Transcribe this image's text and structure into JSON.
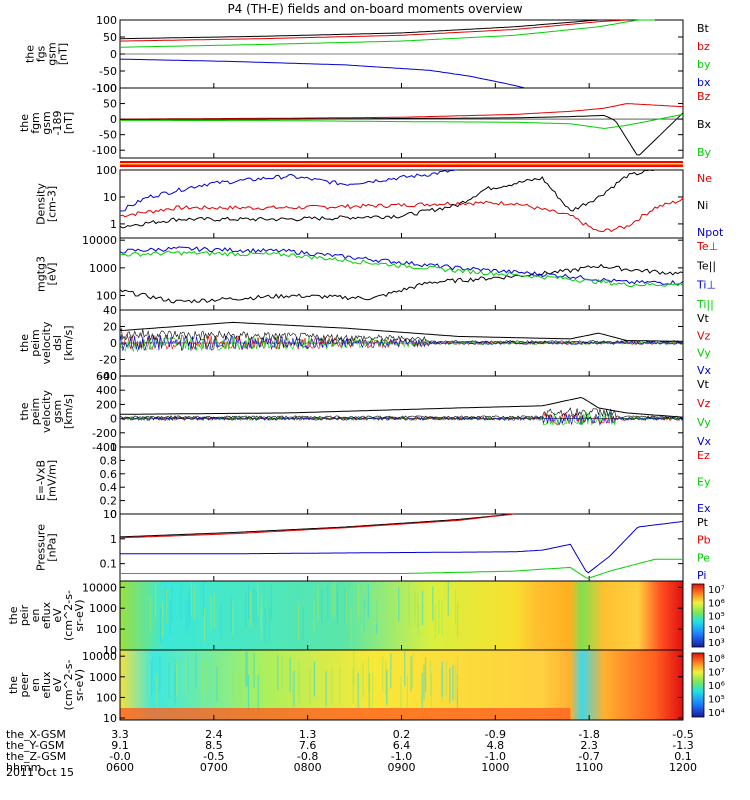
{
  "title": "P4 (TH-E) fields and on-board moments overview",
  "date": "2011 Oct 15",
  "colors": {
    "black": "#000000",
    "red": "#e00000",
    "green": "#00d000",
    "blue": "#0000d0"
  },
  "chart_data": [
    {
      "type": "line",
      "id": "fgs",
      "ylabel": [
        "the",
        "fgs",
        "gsm",
        "[nT]"
      ],
      "ylim": [
        -100,
        100
      ],
      "ticks": [
        100,
        50,
        0,
        -50,
        -100
      ],
      "legend": [
        {
          "name": "Bt",
          "color": "black"
        },
        {
          "name": "bz",
          "color": "red"
        },
        {
          "name": "by",
          "color": "green"
        },
        {
          "name": "bx",
          "color": "blue"
        }
      ],
      "series": [
        {
          "name": "Bt",
          "color": "black",
          "x": [
            0,
            0.25,
            0.5,
            0.7,
            0.85,
            0.9,
            0.92
          ],
          "y": [
            45,
            52,
            62,
            80,
            100,
            100,
            100
          ]
        },
        {
          "name": "bz",
          "color": "red",
          "x": [
            0,
            0.25,
            0.5,
            0.7,
            0.85,
            0.9
          ],
          "y": [
            38,
            45,
            55,
            72,
            95,
            100
          ]
        },
        {
          "name": "by",
          "color": "green",
          "x": [
            0,
            0.25,
            0.5,
            0.7,
            0.85,
            0.92,
            0.95
          ],
          "y": [
            20,
            28,
            38,
            55,
            80,
            100,
            100
          ]
        },
        {
          "name": "bx",
          "color": "blue",
          "x": [
            0,
            0.2,
            0.4,
            0.55,
            0.62,
            0.68,
            0.72
          ],
          "y": [
            -15,
            -22,
            -32,
            -48,
            -65,
            -85,
            -100
          ]
        }
      ]
    },
    {
      "type": "line",
      "id": "fgm",
      "ylabel": [
        "the",
        "fgm",
        "gsm",
        "-189",
        "[nT]"
      ],
      "ylim": [
        -125,
        100
      ],
      "ticks": [
        100,
        50,
        0,
        -50,
        -100
      ],
      "legend": [
        {
          "name": "Bz",
          "color": "red"
        },
        {
          "name": "Bx",
          "color": "black"
        },
        {
          "name": "By",
          "color": "green"
        }
      ],
      "series": [
        {
          "name": "Bz",
          "color": "red",
          "x": [
            0,
            0.3,
            0.5,
            0.7,
            0.8,
            0.86,
            0.9,
            0.95,
            1
          ],
          "y": [
            0,
            3,
            6,
            15,
            25,
            35,
            50,
            45,
            40
          ]
        },
        {
          "name": "Bx",
          "color": "black",
          "x": [
            0,
            0.3,
            0.5,
            0.7,
            0.8,
            0.86,
            0.88,
            0.92,
            1
          ],
          "y": [
            -1,
            0,
            2,
            4,
            8,
            12,
            -5,
            -120,
            20
          ]
        },
        {
          "name": "By",
          "color": "green",
          "x": [
            0,
            0.3,
            0.5,
            0.7,
            0.8,
            0.86,
            0.9,
            1
          ],
          "y": [
            -4,
            -5,
            -8,
            -10,
            -15,
            -30,
            -20,
            15
          ]
        }
      ]
    },
    {
      "type": "line",
      "id": "density",
      "ylabel": [
        "Density",
        "[cm-3]"
      ],
      "ylim": [
        0.3,
        100
      ],
      "scale": "log",
      "ticks": [
        100,
        10,
        1
      ],
      "legend": [
        {
          "name": "Ne",
          "color": "red"
        },
        {
          "name": "Ni",
          "color": "black"
        },
        {
          "name": "Npot",
          "color": "blue"
        }
      ],
      "series": [
        {
          "name": "Ne",
          "color": "red",
          "x": [
            0,
            0.1,
            0.3,
            0.5,
            0.6,
            0.7,
            0.8,
            0.85,
            0.9,
            0.95,
            1
          ],
          "y": [
            2,
            4,
            4,
            5,
            6,
            6,
            2,
            0.5,
            0.8,
            4,
            8
          ]
        },
        {
          "name": "Ni",
          "color": "black",
          "x": [
            0,
            0.1,
            0.3,
            0.5,
            0.6,
            0.65,
            0.75,
            0.8,
            0.85,
            0.9,
            1
          ],
          "y": [
            0.8,
            1.5,
            1.5,
            2,
            5,
            20,
            50,
            3,
            10,
            60,
            180
          ]
        },
        {
          "name": "Npot",
          "color": "blue",
          "x": [
            0,
            0.05,
            0.15,
            0.3,
            0.4,
            0.45,
            0.55,
            0.6
          ],
          "y": [
            3,
            10,
            30,
            60,
            30,
            40,
            70,
            100
          ]
        }
      ]
    },
    {
      "type": "line",
      "id": "mgtg3",
      "ylabel": [
        "mgtg3",
        "[eV]"
      ],
      "ylim": [
        30,
        12000
      ],
      "scale": "log",
      "ticks": [
        10000,
        1000,
        100
      ],
      "legend": [
        {
          "name": "Te⊥",
          "color": "red"
        },
        {
          "name": "Te||",
          "color": "black"
        },
        {
          "name": "Ti⊥",
          "color": "blue"
        },
        {
          "name": "Ti||",
          "color": "green"
        }
      ],
      "series": [
        {
          "name": "Te",
          "color": "black",
          "x": [
            0,
            0.1,
            0.3,
            0.45,
            0.55,
            0.7,
            0.8,
            0.85,
            0.9,
            1
          ],
          "y": [
            150,
            60,
            100,
            80,
            300,
            500,
            800,
            1200,
            900,
            600
          ]
        },
        {
          "name": "Ti",
          "color": "blue",
          "x": [
            0,
            0.1,
            0.3,
            0.45,
            0.6,
            0.8,
            0.9,
            1
          ],
          "y": [
            4000,
            5000,
            4000,
            2000,
            1000,
            500,
            300,
            300
          ]
        },
        {
          "name": "Ti||",
          "color": "green",
          "x": [
            0,
            0.1,
            0.3,
            0.45,
            0.6,
            0.8,
            0.9,
            1
          ],
          "y": [
            3000,
            3500,
            3000,
            1500,
            800,
            400,
            250,
            250
          ]
        }
      ]
    },
    {
      "type": "line",
      "id": "peim",
      "ylabel": [
        "the",
        "peim",
        "velocity",
        "dsl",
        "[km/s]"
      ],
      "ylim": [
        -40,
        40
      ],
      "ticks": [
        40,
        20,
        0,
        -20,
        -40
      ],
      "legend": [
        {
          "name": "Vt",
          "color": "black"
        },
        {
          "name": "Vz",
          "color": "red"
        },
        {
          "name": "Vy",
          "color": "green"
        },
        {
          "name": "Vx",
          "color": "blue"
        }
      ],
      "series": [
        {
          "name": "Vt",
          "color": "black",
          "x": [
            0,
            0.2,
            0.4,
            0.6,
            0.8,
            0.85,
            0.9,
            1
          ],
          "y": [
            15,
            25,
            18,
            8,
            5,
            12,
            3,
            2
          ]
        }
      ]
    },
    {
      "type": "line",
      "id": "peim-gsm",
      "ylabel": [
        "the",
        "peim",
        "velocity",
        "gsm",
        "[km/s]"
      ],
      "ylim": [
        -400,
        600
      ],
      "ticks": [
        600,
        400,
        200,
        0,
        -200,
        -400
      ],
      "legend": [
        {
          "name": "Vt",
          "color": "black"
        },
        {
          "name": "Vz",
          "color": "red"
        },
        {
          "name": "Vy",
          "color": "green"
        },
        {
          "name": "Vx",
          "color": "blue"
        }
      ],
      "series": [
        {
          "name": "Vt",
          "color": "black",
          "x": [
            0,
            0.3,
            0.6,
            0.75,
            0.82,
            0.85,
            0.9,
            1
          ],
          "y": [
            60,
            80,
            150,
            180,
            300,
            150,
            80,
            20
          ]
        }
      ]
    },
    {
      "type": "line",
      "id": "efield",
      "ylabel": [
        "E=-VxB",
        "[mV/m]"
      ],
      "ylim": [
        0,
        1
      ],
      "ticks": [
        1.0,
        0.8,
        0.6,
        0.4,
        0.2,
        0.0
      ],
      "legend": [
        {
          "name": "Ez",
          "color": "red"
        },
        {
          "name": "Ey",
          "color": "green"
        },
        {
          "name": "Ex",
          "color": "blue"
        }
      ],
      "series": []
    },
    {
      "type": "line",
      "id": "pressure",
      "ylabel": [
        "Pressure",
        "[nPa]"
      ],
      "ylim": [
        0.02,
        10
      ],
      "scale": "log",
      "ticks": [
        10,
        1.0,
        0.1
      ],
      "legend": [
        {
          "name": "Pt",
          "color": "black"
        },
        {
          "name": "Pb",
          "color": "red"
        },
        {
          "name": "Pe",
          "color": "green"
        },
        {
          "name": "Pi",
          "color": "blue"
        }
      ],
      "series": [
        {
          "name": "Pt",
          "color": "black",
          "x": [
            0,
            0.2,
            0.4,
            0.6,
            0.7
          ],
          "y": [
            1.2,
            1.8,
            3,
            6,
            10
          ]
        },
        {
          "name": "Pb",
          "color": "red",
          "x": [
            0,
            0.2,
            0.4,
            0.6,
            0.7
          ],
          "y": [
            1.1,
            1.6,
            2.8,
            5.5,
            10
          ]
        },
        {
          "name": "Pi",
          "color": "blue",
          "x": [
            0,
            0.2,
            0.5,
            0.7,
            0.75,
            0.8,
            0.83,
            0.87,
            0.92,
            1
          ],
          "y": [
            0.25,
            0.25,
            0.28,
            0.3,
            0.35,
            0.6,
            0.04,
            0.2,
            3,
            5
          ]
        },
        {
          "name": "Pe",
          "color": "green",
          "x": [
            0,
            0.2,
            0.5,
            0.7,
            0.75,
            0.8,
            0.83,
            0.87,
            0.95,
            1
          ],
          "y": [
            0.04,
            0.04,
            0.04,
            0.05,
            0.06,
            0.07,
            0.025,
            0.05,
            0.15,
            0.15
          ]
        }
      ]
    },
    {
      "type": "heatmap",
      "id": "peir",
      "ylabel": [
        "the",
        "peir",
        "en",
        "eflux",
        "eV",
        "(cm^2-s-",
        "sr-eV)"
      ],
      "ylim": [
        10,
        20000
      ],
      "scale": "log",
      "ticks": [
        10000,
        1000,
        100,
        10
      ],
      "colorbar": [
        "10⁷",
        "10⁶",
        "10⁵",
        "10⁴",
        "10³"
      ]
    },
    {
      "type": "heatmap",
      "id": "peer",
      "ylabel": [
        "the",
        "peer",
        "en",
        "eflux",
        "eV",
        "(cm^2-s-",
        "sr-eV)"
      ],
      "ylim": [
        8,
        20000
      ],
      "scale": "log",
      "ticks": [
        10000,
        1000,
        100,
        10
      ],
      "colorbar": [
        "10⁸",
        "10⁷",
        "10⁶",
        "10⁵",
        "10⁴"
      ]
    }
  ],
  "xaxis": {
    "rows": [
      {
        "label": "the_X-GSM",
        "values": [
          "3.3",
          "2.4",
          "1.3",
          "0.2",
          "-0.9",
          "-1.8",
          "-0.5"
        ]
      },
      {
        "label": "the_Y-GSM",
        "values": [
          "9.1",
          "8.5",
          "7.6",
          "6.4",
          "4.8",
          "2.3",
          "-1.3"
        ]
      },
      {
        "label": "the_Z-GSM",
        "values": [
          "-0.0",
          "-0.5",
          "-0.8",
          "-1.0",
          "-1.0",
          "-0.7",
          "0.1"
        ]
      },
      {
        "label": "hhmm",
        "values": [
          "0600",
          "0700",
          "0800",
          "0900",
          "1000",
          "1100",
          "1200"
        ]
      }
    ]
  }
}
